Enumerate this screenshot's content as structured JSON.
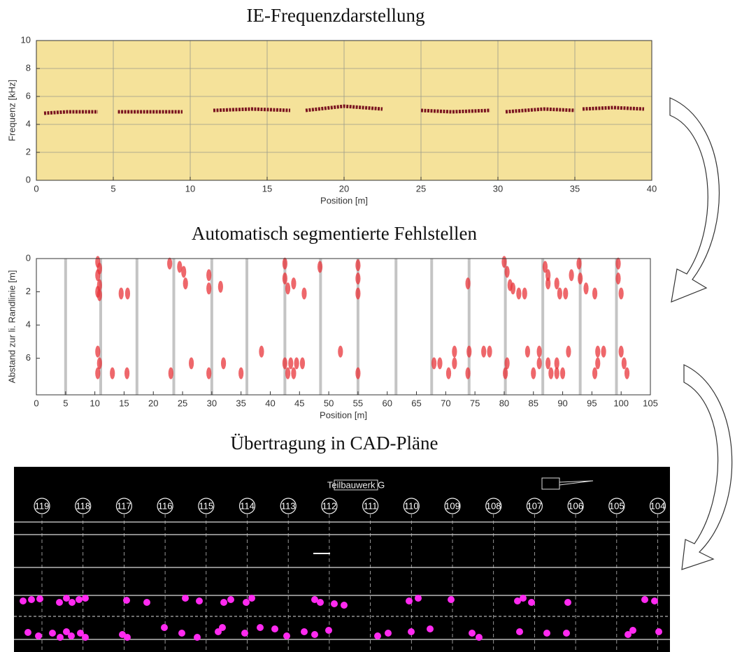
{
  "chart_data": [
    {
      "type": "line",
      "title": "IE-Frequenzdarstellung",
      "xlabel": "Position [m]",
      "ylabel": "Frequenz [kHz]",
      "x": [
        0.5,
        2,
        4,
        4.6,
        5.3,
        7,
        9.5,
        10.2,
        11.5,
        14,
        16.5,
        17.2,
        17.5,
        20,
        22.5,
        24,
        25,
        27,
        29.5,
        30,
        30.5,
        33,
        35,
        35.3,
        35.5,
        37.5,
        39.5
      ],
      "series": [
        {
          "color": "#7a1420",
          "values": [
            4.8,
            4.9,
            4.9,
            null,
            4.9,
            4.9,
            4.9,
            null,
            5.0,
            5.1,
            5.0,
            null,
            5.0,
            5.3,
            5.1,
            null,
            5.0,
            4.9,
            5.0,
            null,
            4.9,
            5.1,
            5.0,
            null,
            5.1,
            5.2,
            5.1
          ]
        }
      ],
      "xlim": [
        0,
        40
      ],
      "ylim": [
        0,
        10
      ],
      "xticks": [
        0,
        5,
        10,
        15,
        20,
        25,
        30,
        35,
        40
      ],
      "yticks": [
        0,
        2,
        4,
        6,
        8,
        10
      ],
      "grid": true,
      "plot_background": "#f5e29a"
    },
    {
      "type": "scatter",
      "title": "Automatisch  segmentierte Fehlstellen",
      "xlabel": "Position [m]",
      "ylabel": "Abstand zur li. Randlinie [m]",
      "x": [
        10.5,
        10.8,
        10.5,
        10.8,
        10.5,
        10.8,
        14.5,
        15.6,
        10.5,
        10.8,
        10.5,
        13,
        15.5,
        22.8,
        24.5,
        25.2,
        25.5,
        29.5,
        29.5,
        31.5,
        23,
        26.5,
        29.5,
        32,
        35,
        42.5,
        42.5,
        43,
        44,
        45.8,
        48.5,
        38.5,
        42.5,
        43.5,
        44.5,
        45.5,
        43,
        44,
        52,
        55,
        55,
        55,
        55,
        68,
        69,
        70.5,
        71.5,
        71.5,
        73.8,
        74,
        73.8,
        76.5,
        77.5,
        80,
        80.5,
        81,
        81.5,
        80.2,
        80.5,
        82.5,
        83.5,
        84,
        86,
        85,
        86,
        87,
        87.5,
        87.5,
        89,
        89.5,
        90.5,
        91.5,
        92.8,
        93,
        94,
        95.5,
        88,
        89,
        90,
        87.5,
        89,
        91,
        96,
        97,
        96,
        95.5,
        99.5,
        99.5,
        100,
        100,
        100.5,
        101
      ],
      "series": [
        {
          "color": "#e8343a",
          "values": [
            0.2,
            0.6,
            1,
            1.6,
            2,
            2.2,
            2.1,
            2.1,
            5.6,
            6.3,
            6.9,
            6.9,
            6.9,
            0.3,
            0.5,
            0.8,
            1.5,
            1,
            1.8,
            1.7,
            6.9,
            6.3,
            6.9,
            6.3,
            6.9,
            0.3,
            1.2,
            1.8,
            1.5,
            2.1,
            0.5,
            5.6,
            6.3,
            6.3,
            6.3,
            6.3,
            6.9,
            6.9,
            5.6,
            0.4,
            1.2,
            2.1,
            6.9,
            6.3,
            6.3,
            6.9,
            5.6,
            6.3,
            1.5,
            5.6,
            6.9,
            5.6,
            5.6,
            0.2,
            0.8,
            1.6,
            1.8,
            6.9,
            6.3,
            2.1,
            2.1,
            5.6,
            5.6,
            6.9,
            6.3,
            0.5,
            1,
            1.5,
            1.5,
            2.1,
            2.1,
            1,
            0.3,
            1.2,
            1.8,
            2.1,
            6.9,
            6.9,
            6.9,
            6.3,
            6.3,
            5.6,
            5.6,
            5.6,
            6.3,
            6.9,
            0.3,
            1.2,
            2.1,
            5.6,
            6.3,
            6.9
          ]
        }
      ],
      "vlines": [
        5,
        11,
        17.2,
        23.5,
        30,
        36,
        42.5,
        48.6,
        55,
        61.5,
        67.6,
        74,
        80.2,
        86.6,
        93,
        99.2
      ],
      "vline_color": "#c4c4c4",
      "xlim": [
        0,
        105
      ],
      "ylim": [
        0,
        8.2
      ],
      "y_inverted": true,
      "xticks": [
        0,
        5,
        10,
        15,
        20,
        25,
        30,
        35,
        40,
        45,
        50,
        55,
        60,
        65,
        70,
        75,
        80,
        85,
        90,
        95,
        100,
        105
      ],
      "yticks": [
        0,
        2,
        4,
        6
      ],
      "grid": false,
      "plot_background": "#ffffff"
    }
  ],
  "cad": {
    "title": "Übertragung in CAD-Pläne",
    "label": "Teilbauwerk G",
    "columns": [
      "119",
      "118",
      "117",
      "116",
      "115",
      "114",
      "113",
      "112",
      "111",
      "110",
      "109",
      "108",
      "107",
      "106",
      "105",
      "104"
    ]
  }
}
